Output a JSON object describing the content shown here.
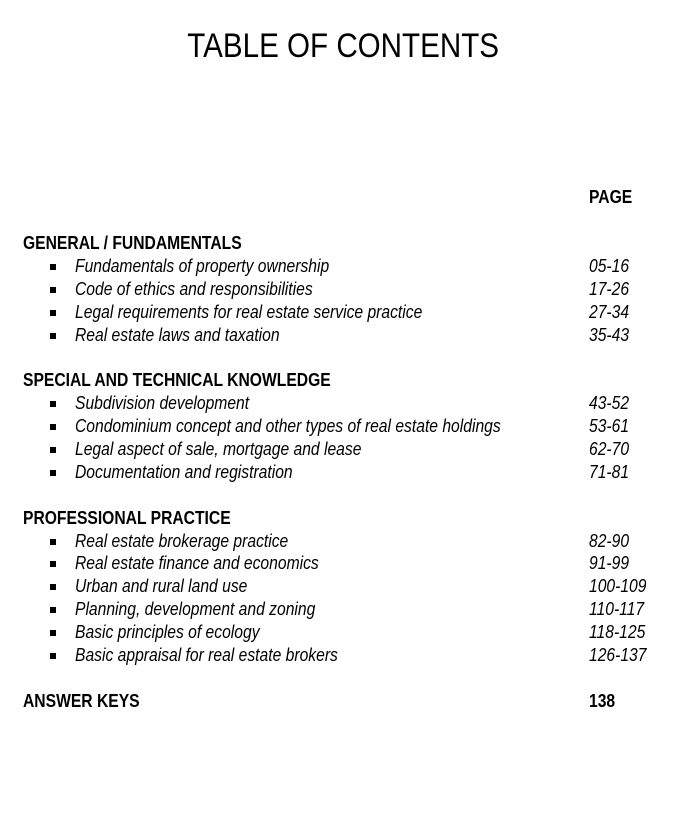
{
  "title": "TABLE OF CONTENTS",
  "page_header": "PAGE",
  "sections": [
    {
      "heading": "GENERAL / FUNDAMENTALS",
      "items": [
        {
          "label": "Fundamentals of property ownership",
          "pages": "05-16"
        },
        {
          "label": "Code of ethics and responsibilities",
          "pages": "17-26"
        },
        {
          "label": "Legal requirements for real estate service practice",
          "pages": "27-34"
        },
        {
          "label": "Real estate laws and taxation",
          "pages": "35-43"
        }
      ]
    },
    {
      "heading": "SPECIAL AND TECHNICAL KNOWLEDGE",
      "items": [
        {
          "label": "Subdivision development",
          "pages": "43-52"
        },
        {
          "label": "Condominium concept and other types of real estate holdings",
          "pages": "53-61"
        },
        {
          "label": "Legal aspect of sale, mortgage and lease",
          "pages": "62-70"
        },
        {
          "label": "Documentation and registration",
          "pages": "71-81"
        }
      ]
    },
    {
      "heading": "PROFESSIONAL PRACTICE",
      "items": [
        {
          "label": "Real estate brokerage practice",
          "pages": "82-90"
        },
        {
          "label": "Real estate finance and economics",
          "pages": "91-99"
        },
        {
          "label": "Urban and rural land use",
          "pages": "100-109"
        },
        {
          "label": "Planning, development and zoning",
          "pages": "110-117"
        },
        {
          "label": "Basic principles of ecology",
          "pages": "118-125"
        },
        {
          "label": "Basic appraisal for real estate brokers",
          "pages": "126-137"
        }
      ]
    }
  ],
  "answer_keys": {
    "heading": "ANSWER KEYS",
    "pages": "138"
  }
}
